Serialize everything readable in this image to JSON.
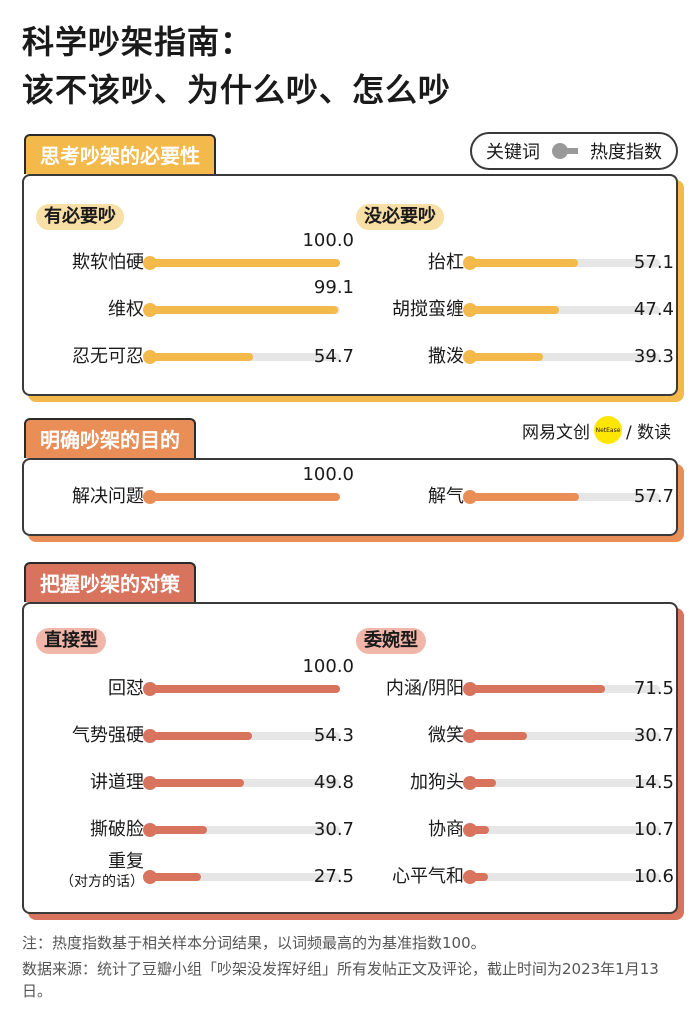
{
  "title_line1": "科学吵架指南：",
  "title_line2": "该不该吵、为什么吵、怎么吵",
  "legend": {
    "left": "关键词",
    "right": "热度指数"
  },
  "logo": {
    "text1": "网易文创",
    "badge": "NetEase",
    "text2": "/ 数读"
  },
  "colors": {
    "yellow": "#f3b94b",
    "orange": "#ea8e57",
    "red": "#d8735d"
  },
  "chart_data": [
    {
      "type": "bar",
      "title": "思考吵架的必要性",
      "series": [
        {
          "name": "有必要吵",
          "categories": [
            "欺软怕硬",
            "维权",
            "忍无可忍"
          ],
          "values": [
            100.0,
            99.1,
            54.7
          ]
        },
        {
          "name": "没必要吵",
          "categories": [
            "抬杠",
            "胡搅蛮缠",
            "撒泼"
          ],
          "values": [
            57.1,
            47.4,
            39.3
          ]
        }
      ],
      "ylim": [
        0,
        100
      ]
    },
    {
      "type": "bar",
      "title": "明确吵架的目的",
      "series": [
        {
          "name": "",
          "categories": [
            "解决问题"
          ],
          "values": [
            100.0
          ]
        },
        {
          "name": "",
          "categories": [
            "解气"
          ],
          "values": [
            57.7
          ]
        }
      ],
      "ylim": [
        0,
        100
      ]
    },
    {
      "type": "bar",
      "title": "把握吵架的对策",
      "series": [
        {
          "name": "直接型",
          "categories": [
            "回怼",
            "气势强硬",
            "讲道理",
            "撕破脸",
            "重复（对方的话）"
          ],
          "values": [
            100.0,
            54.3,
            49.8,
            30.7,
            27.5
          ]
        },
        {
          "name": "委婉型",
          "categories": [
            "内涵/阴阳",
            "微笑",
            "加狗头",
            "协商",
            "心平气和"
          ],
          "values": [
            71.5,
            30.7,
            14.5,
            10.7,
            10.6
          ]
        }
      ],
      "ylim": [
        0,
        100
      ]
    }
  ],
  "notes": {
    "line1": "注：热度指数基于相关样本分词结果，以词频最高的为基准指数100。",
    "line2": "数据来源：统计了豆瓣小组「吵架没发挥好组」所有发帖正文及评论，截止时间为2023年1月13日。"
  }
}
